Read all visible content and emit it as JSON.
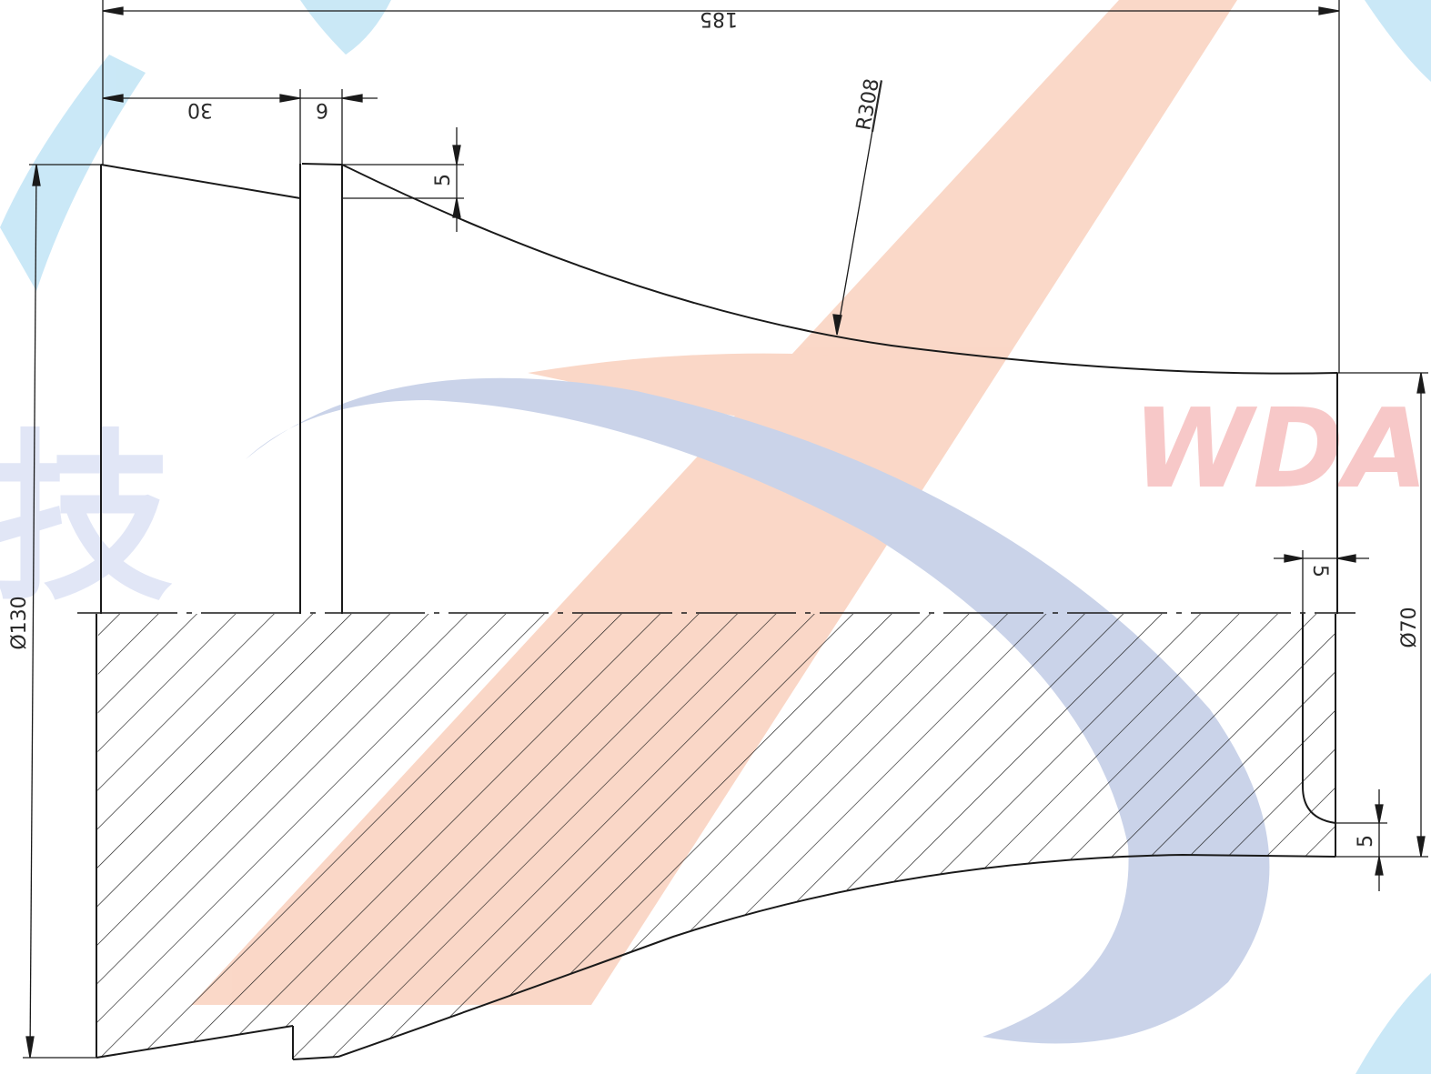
{
  "colors": {
    "line": "#1a1a1a",
    "watermark_orange": "#f6b89a",
    "watermark_blue": "#9fb0d8",
    "watermark_cyan": "#9fd6f0",
    "watermark_red_text": "#f29c9c"
  },
  "watermark": {
    "logo_text": "WDA",
    "side_glyph": "技"
  },
  "dimensions": {
    "overall_length": "185",
    "flange_length": "30",
    "neck_width": "6",
    "step_height": "5",
    "arc_radius": "R308",
    "small_diameter": "Ø70",
    "large_diameter": "Ø130",
    "end_offset": "5",
    "fillet_height": "5"
  }
}
